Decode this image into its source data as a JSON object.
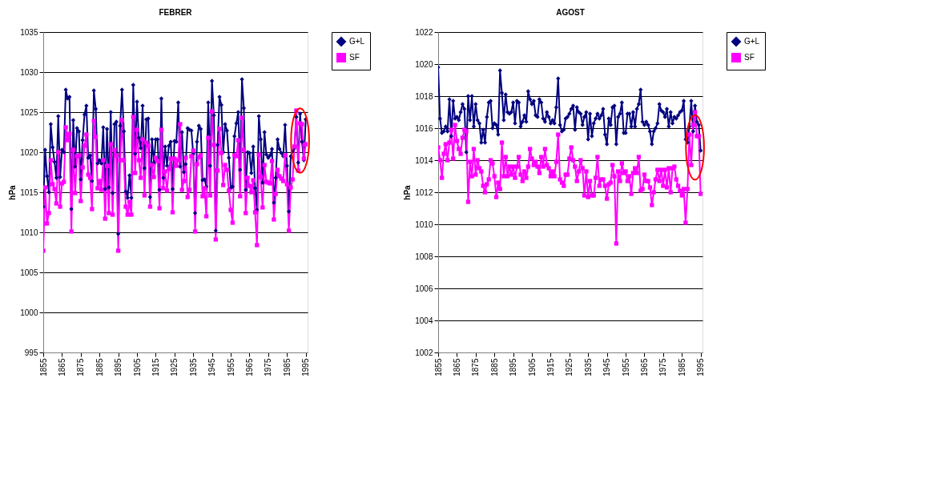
{
  "chart_data": [
    {
      "type": "line",
      "title": "FEBRER",
      "ylabel": "hPa",
      "ylim": [
        995,
        1035
      ],
      "yticks": [
        995,
        1000,
        1005,
        1010,
        1015,
        1020,
        1025,
        1030,
        1035
      ],
      "xlim": [
        1855,
        1996
      ],
      "xticks": [
        1855,
        1865,
        1875,
        1885,
        1895,
        1905,
        1915,
        1925,
        1935,
        1945,
        1955,
        1965,
        1975,
        1985,
        1995
      ],
      "grid": "y",
      "legend": "right",
      "x": [
        1855,
        1856,
        1857,
        1858,
        1859,
        1860,
        1861,
        1862,
        1863,
        1864,
        1865,
        1866,
        1867,
        1868,
        1869,
        1870,
        1871,
        1872,
        1873,
        1874,
        1875,
        1876,
        1877,
        1878,
        1879,
        1880,
        1881,
        1882,
        1883,
        1884,
        1885,
        1886,
        1887,
        1888,
        1889,
        1890,
        1891,
        1892,
        1893,
        1894,
        1895,
        1896,
        1897,
        1898,
        1899,
        1900,
        1901,
        1902,
        1903,
        1904,
        1905,
        1906,
        1907,
        1908,
        1909,
        1910,
        1911,
        1912,
        1913,
        1914,
        1915,
        1916,
        1917,
        1918,
        1919,
        1920,
        1921,
        1922,
        1923,
        1924,
        1925,
        1926,
        1927,
        1928,
        1929,
        1930,
        1931,
        1932,
        1933,
        1934,
        1935,
        1936,
        1937,
        1938,
        1939,
        1940,
        1941,
        1942,
        1943,
        1944,
        1945,
        1946,
        1947,
        1948,
        1949,
        1950,
        1951,
        1952,
        1953,
        1954,
        1955,
        1956,
        1957,
        1958,
        1959,
        1960,
        1961,
        1962,
        1963,
        1964,
        1965,
        1966,
        1967,
        1968,
        1969,
        1970,
        1971,
        1972,
        1973,
        1974,
        1975,
        1976,
        1977,
        1978,
        1979,
        1980,
        1981,
        1982,
        1983,
        1984,
        1985,
        1986,
        1987,
        1988,
        1989,
        1990,
        1991,
        1992,
        1993,
        1994,
        1995
      ],
      "series": [
        {
          "name": "G+L",
          "color": "#000080",
          "marker": "diamond",
          "values": [
            1013.2,
            1020.3,
            1017,
            1015,
            1023.5,
            1020.6,
            1018.8,
            1016.8,
            1024.5,
            1016.9,
            1020.3,
            1020,
            1027.8,
            1026.7,
            1026.9,
            1012.9,
            1024,
            1018.2,
            1023,
            1022.6,
            1016.6,
            1021.5,
            1024.7,
            1025.8,
            1019.3,
            1019.6,
            1016.4,
            1027.7,
            1025.4,
            1018.6,
            1019,
            1018.6,
            1023.1,
            1015.4,
            1022.9,
            1015.6,
            1025,
            1014.9,
            1023.5,
            1023.8,
            1009.8,
            1023.3,
            1027.8,
            1022.6,
            1015.1,
            1014.3,
            1017.1,
            1014.3,
            1028.4,
            1019.8,
            1026.3,
            1021.8,
            1020.5,
            1025.8,
            1018,
            1024.1,
            1024.2,
            1014.4,
            1021.6,
            1018.7,
            1021.6,
            1021.6,
            1015.3,
            1026.7,
            1016.8,
            1020.7,
            1018.3,
            1020.8,
            1021.3,
            1015.4,
            1021.4,
            1021.3,
            1026.2,
            1018.2,
            1022.5,
            1017.5,
            1018.5,
            1023,
            1022.8,
            1022.7,
            1019.8,
            1012.4,
            1021.3,
            1023.3,
            1022.9,
            1016.5,
            1016.6,
            1015.7,
            1026.2,
            1018.3,
            1028.9,
            1024.6,
            1010.2,
            1020.9,
            1026.9,
            1025.9,
            1020,
            1023.5,
            1022.7,
            1019.3,
            1015.5,
            1015.7,
            1022,
            1023.6,
            1025,
            1017.8,
            1029.1,
            1025.5,
            1015.3,
            1020,
            1019.9,
            1017.4,
            1020.7,
            1015.5,
            1012.8,
            1024.5,
            1021.6,
            1016.2,
            1022.5,
            1019.7,
            1019.3,
            1019.6,
            1020.4,
            1013.7,
            1016.8,
            1021.6,
            1020.4,
            1019.9,
            1019.5,
            1023.4,
            1018.3,
            1012.6,
            1019.5,
            1020.1,
            1020.5,
            1024.4,
            1018.7,
            1024.8,
            1021.3,
            1019,
            1024.1
          ]
        },
        {
          "name": "SF",
          "color": "#ff00ff",
          "marker": "square",
          "values": [
            1007.7,
            1015.6,
            1011.1,
            1012.4,
            1019,
            1016,
            1015.4,
            1013.6,
            1020,
            1013.2,
            1016.1,
            1016.3,
            1023.1,
            1021.5,
            1022.3,
            1010.1,
            1020.3,
            1014.9,
            1019.5,
            1019.6,
            1013.9,
            1018.1,
            1020.8,
            1022.2,
            1017.2,
            1016.8,
            1012.9,
            1023.9,
            1021.9,
            1015.5,
            1016.4,
            1015.3,
            1019,
            1011.7,
            1018.3,
            1012.4,
            1021,
            1012.2,
            1020.3,
            1019.6,
            1007.7,
            1019,
            1024,
            1019,
            1013.2,
            1012.2,
            1013.8,
            1012.2,
            1024.4,
            1017.4,
            1022.8,
            1019,
            1016.8,
            1021.6,
            1014.6,
            1021.2,
            1020.8,
            1013.2,
            1018.4,
            1016.9,
            1019.3,
            1018.9,
            1013,
            1022.8,
            1015.5,
            1017.6,
            1015.2,
            1017.9,
            1019.2,
            1012.5,
            1019.2,
            1018.3,
            1019,
            1023.5,
            1015.3,
            1016.4,
            1019.3,
            1014.4,
            1015.3,
            1019.5,
            1020.2,
            1010.1,
            1018.5,
            1019.4,
            1019.6,
            1014.5,
            1015.5,
            1012,
            1021.8,
            1014.6,
            1025.1,
            1020.9,
            1009.1,
            1017.7,
            1022.9,
            1019.9,
            1015.9,
            1018.4,
            1017.8,
            1015.2,
            1012.8,
            1011.2,
            1019.6,
            1019.5,
            1021.5,
            1014.5,
            1024.3,
            1020.3,
            1012.4,
            1016.8,
            1015.8,
            1015,
            1016.5,
            1012.5,
            1008.4,
            1019.7,
            1016.9,
            1013.1,
            1018.4,
            1016.3,
            1016.2,
            1016.1,
            1018.9,
            1011.6,
            1014.8,
            1017.8,
            1017,
            1016.7,
            1016.4,
            1019.6,
            1016,
            1010.2,
            1015.6,
            1016.6,
            1020.7,
            1025.2,
            1017.7,
            1023.6,
            1023.5,
            1019.2,
            1021
          ]
        }
      ]
    },
    {
      "type": "line",
      "title": "AGOST",
      "ylabel": "hPa",
      "ylim": [
        1002,
        1022
      ],
      "yticks": [
        1002,
        1004,
        1006,
        1008,
        1010,
        1012,
        1014,
        1016,
        1018,
        1020,
        1022
      ],
      "xlim": [
        1855,
        1996
      ],
      "xticks": [
        1855,
        1865,
        1875,
        1885,
        1895,
        1905,
        1915,
        1925,
        1935,
        1945,
        1955,
        1965,
        1975,
        1985,
        1995
      ],
      "grid": "y",
      "legend": "right",
      "x": [
        1855,
        1856,
        1857,
        1858,
        1859,
        1860,
        1861,
        1862,
        1863,
        1864,
        1865,
        1866,
        1867,
        1868,
        1869,
        1870,
        1871,
        1872,
        1873,
        1874,
        1875,
        1876,
        1877,
        1878,
        1879,
        1880,
        1881,
        1882,
        1883,
        1884,
        1885,
        1886,
        1887,
        1888,
        1889,
        1890,
        1891,
        1892,
        1893,
        1894,
        1895,
        1896,
        1897,
        1898,
        1899,
        1900,
        1901,
        1902,
        1903,
        1904,
        1905,
        1906,
        1907,
        1908,
        1909,
        1910,
        1911,
        1912,
        1913,
        1914,
        1915,
        1916,
        1917,
        1918,
        1919,
        1920,
        1921,
        1922,
        1923,
        1924,
        1925,
        1926,
        1927,
        1928,
        1929,
        1930,
        1931,
        1932,
        1933,
        1934,
        1935,
        1936,
        1937,
        1938,
        1939,
        1940,
        1941,
        1942,
        1943,
        1944,
        1945,
        1946,
        1947,
        1948,
        1949,
        1950,
        1951,
        1952,
        1953,
        1954,
        1955,
        1956,
        1957,
        1958,
        1959,
        1960,
        1961,
        1962,
        1963,
        1964,
        1965,
        1966,
        1967,
        1968,
        1969,
        1970,
        1971,
        1972,
        1973,
        1974,
        1975,
        1976,
        1977,
        1978,
        1979,
        1980,
        1981,
        1982,
        1983,
        1984,
        1985,
        1986,
        1987,
        1988,
        1989,
        1990,
        1991,
        1992,
        1993,
        1994,
        1995
      ],
      "series": [
        {
          "name": "G+L",
          "color": "#000080",
          "marker": "diamond",
          "values": [
            1019.8,
            1016.6,
            1015.7,
            1015.8,
            1016.1,
            1015.8,
            1017.8,
            1015.5,
            1017.7,
            1016.6,
            1016.7,
            1016.5,
            1017,
            1017.5,
            1017.2,
            1014.5,
            1018,
            1016.5,
            1018,
            1016.1,
            1017.5,
            1016.5,
            1016.3,
            1015.1,
            1015.9,
            1015.1,
            1016.7,
            1017.6,
            1017.7,
            1016,
            1016.3,
            1016.2,
            1015.6,
            1019.6,
            1018.2,
            1016.5,
            1018.1,
            1017,
            1016.9,
            1017,
            1017.6,
            1016.3,
            1017.7,
            1017.6,
            1016.1,
            1016.4,
            1016.8,
            1016.4,
            1018.3,
            1017.8,
            1017.5,
            1017.7,
            1016.8,
            1016.7,
            1017.8,
            1017.6,
            1016.6,
            1016.4,
            1017,
            1016.7,
            1016.3,
            1016.5,
            1016.3,
            1017.3,
            1019.1,
            1016.2,
            1015.8,
            1015.9,
            1016.6,
            1016.7,
            1016.9,
            1017.2,
            1017.4,
            1015.9,
            1017.3,
            1017,
            1016.9,
            1016.2,
            1016.7,
            1017,
            1015.3,
            1016.9,
            1015.5,
            1016.3,
            1016.6,
            1016.9,
            1016.6,
            1016.8,
            1017.2,
            1015.6,
            1015,
            1016.6,
            1016.2,
            1017.3,
            1017.4,
            1015,
            1016.7,
            1016.9,
            1017.6,
            1015.7,
            1015.7,
            1016.9,
            1016.9,
            1016.1,
            1017,
            1016.1,
            1017.2,
            1017.5,
            1018.4,
            1016.4,
            1016.2,
            1016.4,
            1016.2,
            1015.8,
            1015,
            1015.8,
            1016,
            1016.3,
            1017.5,
            1017.1,
            1017,
            1016.7,
            1017.2,
            1016.1,
            1017,
            1016.3,
            1016.7,
            1016.6,
            1016.8,
            1017,
            1017.1,
            1017.7,
            1015.3,
            1015.1,
            1016.1,
            1017.7,
            1015.8,
            1017.4,
            1016.4,
            1016.2,
            1014.6
          ]
        },
        {
          "name": "SF",
          "color": "#ff00ff",
          "marker": "square",
          "values": [
            1014.8,
            1014,
            1012.9,
            1014.4,
            1015,
            1014,
            1015.1,
            1015.9,
            1014.1,
            1016.2,
            1015.2,
            1014.7,
            1014.4,
            1015.4,
            1015.9,
            1015.8,
            1011.4,
            1013.9,
            1013,
            1014.7,
            1013.1,
            1014,
            1013.5,
            1013.3,
            1012.4,
            1012,
            1012.5,
            1012.8,
            1014,
            1013.8,
            1013,
            1011.7,
            1012.6,
            1012.2,
            1015.1,
            1013,
            1014.2,
            1013,
            1013.6,
            1013.1,
            1013.6,
            1012.9,
            1013.6,
            1014.2,
            1013.1,
            1012.7,
            1013.3,
            1012.9,
            1013.6,
            1014.7,
            1014.1,
            1013.7,
            1013.9,
            1013.6,
            1013.2,
            1014.2,
            1013.6,
            1014.7,
            1013.7,
            1013.5,
            1013,
            1013.3,
            1013,
            1013.9,
            1015.6,
            1012.8,
            1012.6,
            1012.4,
            1013.1,
            1013.1,
            1014.1,
            1014.8,
            1014,
            1013.6,
            1012.7,
            1013.3,
            1014,
            1013.5,
            1011.8,
            1013.3,
            1011.7,
            1012.7,
            1011.8,
            1011.8,
            1012.9,
            1014.2,
            1012.4,
            1012.8,
            1012.8,
            1012.4,
            1011.6,
            1012.5,
            1012.6,
            1013.7,
            1013,
            1008.8,
            1013.3,
            1012.7,
            1013.8,
            1013.2,
            1013.3,
            1012.7,
            1013,
            1011.9,
            1013.2,
            1013.5,
            1013.2,
            1014.2,
            1012.1,
            1012.2,
            1013.1,
            1012.7,
            1012.7,
            1012.3,
            1011.2,
            1012,
            1012.8,
            1013.4,
            1012.7,
            1013.4,
            1012.4,
            1013.4,
            1012.3,
            1013.5,
            1012,
            1013.5,
            1013.6,
            1012.8,
            1012.4,
            1012.1,
            1011.8,
            1012.2,
            1010.1,
            1012.2,
            1015.6,
            1013.7,
            1016.2,
            1017,
            1015.5,
            1015.5,
            1011.9
          ]
        }
      ]
    }
  ]
}
